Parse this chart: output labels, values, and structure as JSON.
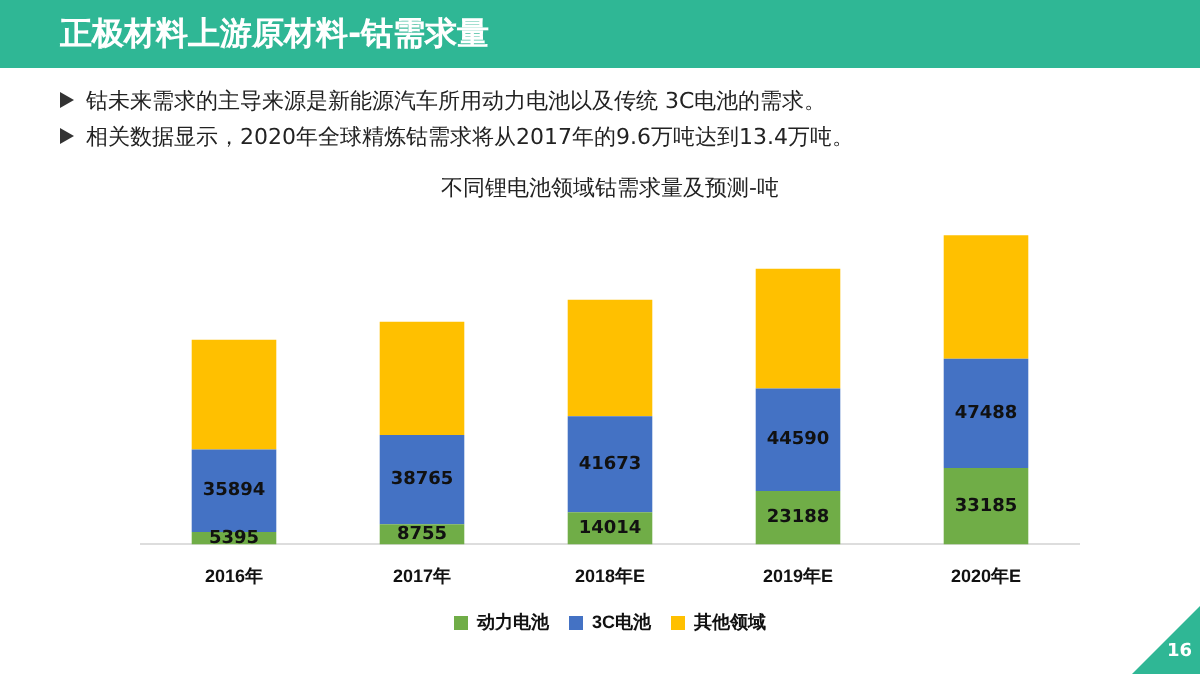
{
  "chart_data": {
    "type": "bar",
    "title": "正极材料上游原材料-钴需求量",
    "subtitle": "不同锂电池领域钴需求量及预测-吨",
    "annotations": [
      "钴未来需求的主导来源是新能源汽车所用动力电池以及传统 3C电池的需求。",
      "相关数据显示，2020年全球精炼钴需求将从2017年的9.6万吨达到13.4万吨。",
      "16"
    ],
    "categories": [
      "2016年",
      "2017年",
      "2018年E",
      "2019年E",
      "2020年E"
    ],
    "stacked": true,
    "legend": "bottom",
    "grid": false,
    "series": [
      {
        "name": "动力电池",
        "color": "#70ad47",
        "values": [
          5395,
          8755,
          14014,
          23188,
          33185
        ],
        "value_labels": [
          "5395",
          "8755",
          "14014",
          "23188",
          "33185"
        ]
      },
      {
        "name": "3C电池",
        "color": "#4472c4",
        "values": [
          35894,
          38765,
          41673,
          44590,
          47488
        ],
        "value_labels": [
          "35894",
          "38765",
          "41673",
          "44590",
          "47488"
        ]
      },
      {
        "name": "其他领域",
        "color": "#ffc000",
        "values": [
          47700,
          49300,
          50700,
          52100,
          53700
        ]
      }
    ]
  }
}
